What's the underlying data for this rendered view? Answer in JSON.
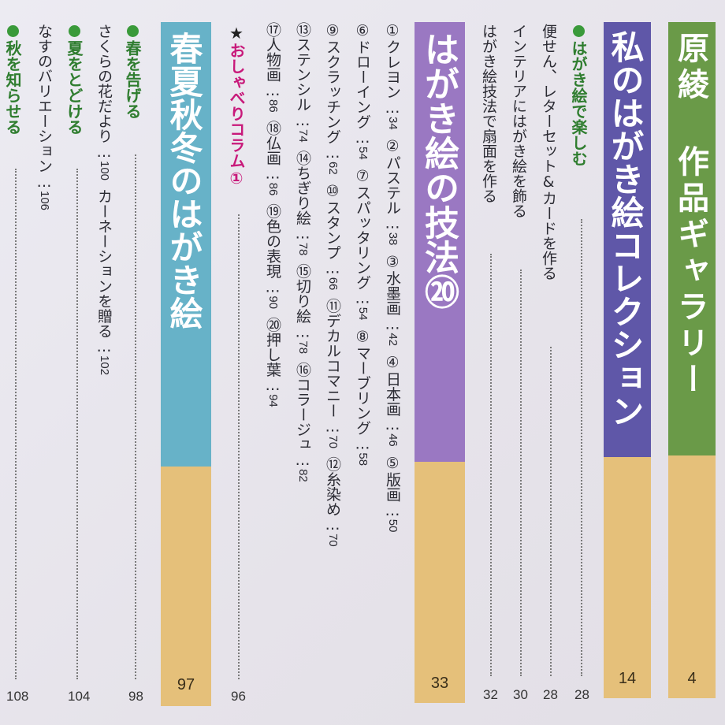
{
  "columns": {
    "gallery": {
      "title": "原綾 作品ギャラリー",
      "page": "4",
      "top_color": "#6a9a48"
    },
    "collection": {
      "title": "私のはがき絵コレクション",
      "page": "14",
      "top_color": "#5f57a8"
    },
    "technique": {
      "title": "はがき絵の技法⑳",
      "page": "33",
      "top_color": "#9a78c2"
    },
    "seasons": {
      "title": "春夏秋冬のはがき絵",
      "page": "97",
      "top_color": "#67b2c8"
    }
  },
  "collection_entries": {
    "heading": "はがき絵で楽しむ",
    "heading_page": "28",
    "items": [
      {
        "label": "便せん、レターセット&カードを作る",
        "page": "28"
      },
      {
        "label": "インテリアにはがき絵を飾る",
        "page": "30"
      },
      {
        "label": "はがき絵技法で扇面を作る",
        "page": "32"
      }
    ]
  },
  "techniques": {
    "rows": [
      [
        {
          "label": "①クレヨン",
          "page": "34"
        },
        {
          "label": "②パステル",
          "page": "38"
        },
        {
          "label": "③水墨画",
          "page": "42"
        },
        {
          "label": "④日本画",
          "page": "46"
        },
        {
          "label": "⑤版画",
          "page": "50"
        }
      ],
      [
        {
          "label": "⑥ドローイング",
          "page": "54"
        },
        {
          "label": "⑦スパッタリング",
          "page": "54"
        },
        {
          "label": "⑧マーブリング",
          "page": "58"
        }
      ],
      [
        {
          "label": "⑨スクラッチング",
          "page": "62"
        },
        {
          "label": "⑩スタンプ",
          "page": "66"
        },
        {
          "label": "⑪デカルコマニー",
          "page": "70"
        },
        {
          "label": "⑫糸染め",
          "page": "70"
        }
      ],
      [
        {
          "label": "⑬ステンシル",
          "page": "74"
        },
        {
          "label": "⑭ちぎり絵",
          "page": "78"
        },
        {
          "label": "⑮切り絵",
          "page": "78"
        },
        {
          "label": "⑯コラージュ",
          "page": "82"
        }
      ],
      [
        {
          "label": "⑰人物画",
          "page": "86"
        },
        {
          "label": "⑱仏画",
          "page": "86"
        },
        {
          "label": "⑲色の表現",
          "page": "90"
        },
        {
          "label": "⑳押し葉",
          "page": "94"
        }
      ]
    ],
    "column": {
      "star": "★",
      "label": "おしゃべりコラム①",
      "page": "96"
    }
  },
  "seasons_entries": [
    {
      "label": "春を告げる",
      "page": "98",
      "heading": true
    },
    {
      "label": "さくらの花だより",
      "page": "100",
      "heading": false
    },
    {
      "label": "カーネーションを贈る",
      "page": "102",
      "heading": false
    },
    {
      "label": "夏をとどける",
      "page": "104",
      "heading": true
    },
    {
      "label": "なすのバリエーション",
      "page": "106",
      "heading": false
    },
    {
      "label": "秋を知らせる",
      "page": "108",
      "heading": true
    }
  ]
}
